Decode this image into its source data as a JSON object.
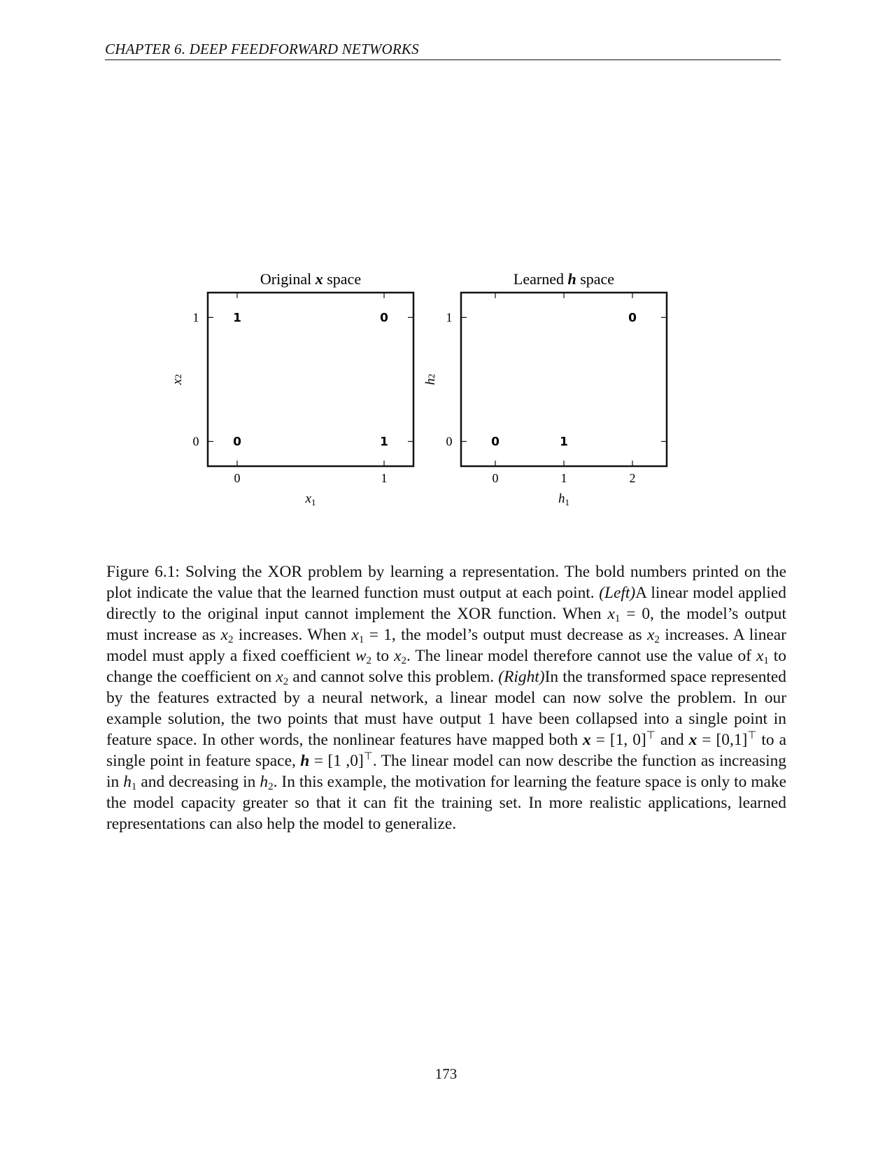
{
  "header": {
    "running_title": "CHAPTER 6.   DEEP FEEDFORWARD NETWORKS"
  },
  "chart_data": [
    {
      "type": "scatter",
      "title": "Original x space",
      "xlabel": "x1",
      "ylabel": "x2",
      "xticks": [
        "0",
        "1"
      ],
      "yticks": [
        "0",
        "1"
      ],
      "xlim": [
        -0.2,
        1.2
      ],
      "ylim": [
        -0.2,
        1.2
      ],
      "points": [
        {
          "x": 0,
          "y": 1,
          "label": "1"
        },
        {
          "x": 1,
          "y": 1,
          "label": "0"
        },
        {
          "x": 0,
          "y": 0,
          "label": "0"
        },
        {
          "x": 1,
          "y": 0,
          "label": "1"
        }
      ]
    },
    {
      "type": "scatter",
      "title": "Learned h space",
      "xlabel": "h1",
      "ylabel": "h2",
      "xticks": [
        "0",
        "1",
        "2"
      ],
      "yticks": [
        "0",
        "1"
      ],
      "xlim": [
        -0.5,
        2.5
      ],
      "ylim": [
        -0.2,
        1.2
      ],
      "points": [
        {
          "x": 2,
          "y": 1,
          "label": "0"
        },
        {
          "x": 0,
          "y": 0,
          "label": "0"
        },
        {
          "x": 1,
          "y": 0,
          "label": "1"
        }
      ]
    }
  ],
  "caption": {
    "fig_label": "Figure 6.1:",
    "s1": " Solving the XOR problem by learning a representation. The bold numbers printed on the plot indicate the value that the learned function must output at each point.",
    "left_tag": "(Left)",
    "s2": "A linear model applied directly to the original input cannot implement the XOR function. When ",
    "x1": "x",
    "one": "1",
    "two": "2",
    "eq0": " = 0, the model’s output must increase as ",
    "s3": " increases. When ",
    "eq1": " = 1, the model’s output must decrease as ",
    "s4": " increases. A linear model must apply a fixed coefficient ",
    "w": "w",
    "to": " to ",
    "s5": ". The linear model therefore cannot use the value of ",
    "s6": " to change the coefficient on ",
    "s7": " and cannot solve this problem. ",
    "right_tag": "(Right)",
    "s8": "In the transformed space represented by the features extracted by a neural network, a linear model can now solve the problem. In our example solution, the two points that must have output 1 have been collapsed into a single point in feature space. In other words, the nonlinear features have mapped both ",
    "bx": "x",
    "v10": " = [1, 0]",
    "T": "⊤",
    "and": " and ",
    "v01": " = [0,1]",
    "s9": " to a single point in feature space, ",
    "bh": "h",
    "v10b": " = [1 ,0]",
    "s10": ". The linear model can now describe the function as increasing in ",
    "h": "h",
    "s11": " and decreasing in ",
    "s12": ". In this example, the motivation for learning the feature space is only to make the model capacity greater so that it can fit the training set. In more realistic applications, learned representations can also help the model to generalize."
  },
  "page_number": "173"
}
